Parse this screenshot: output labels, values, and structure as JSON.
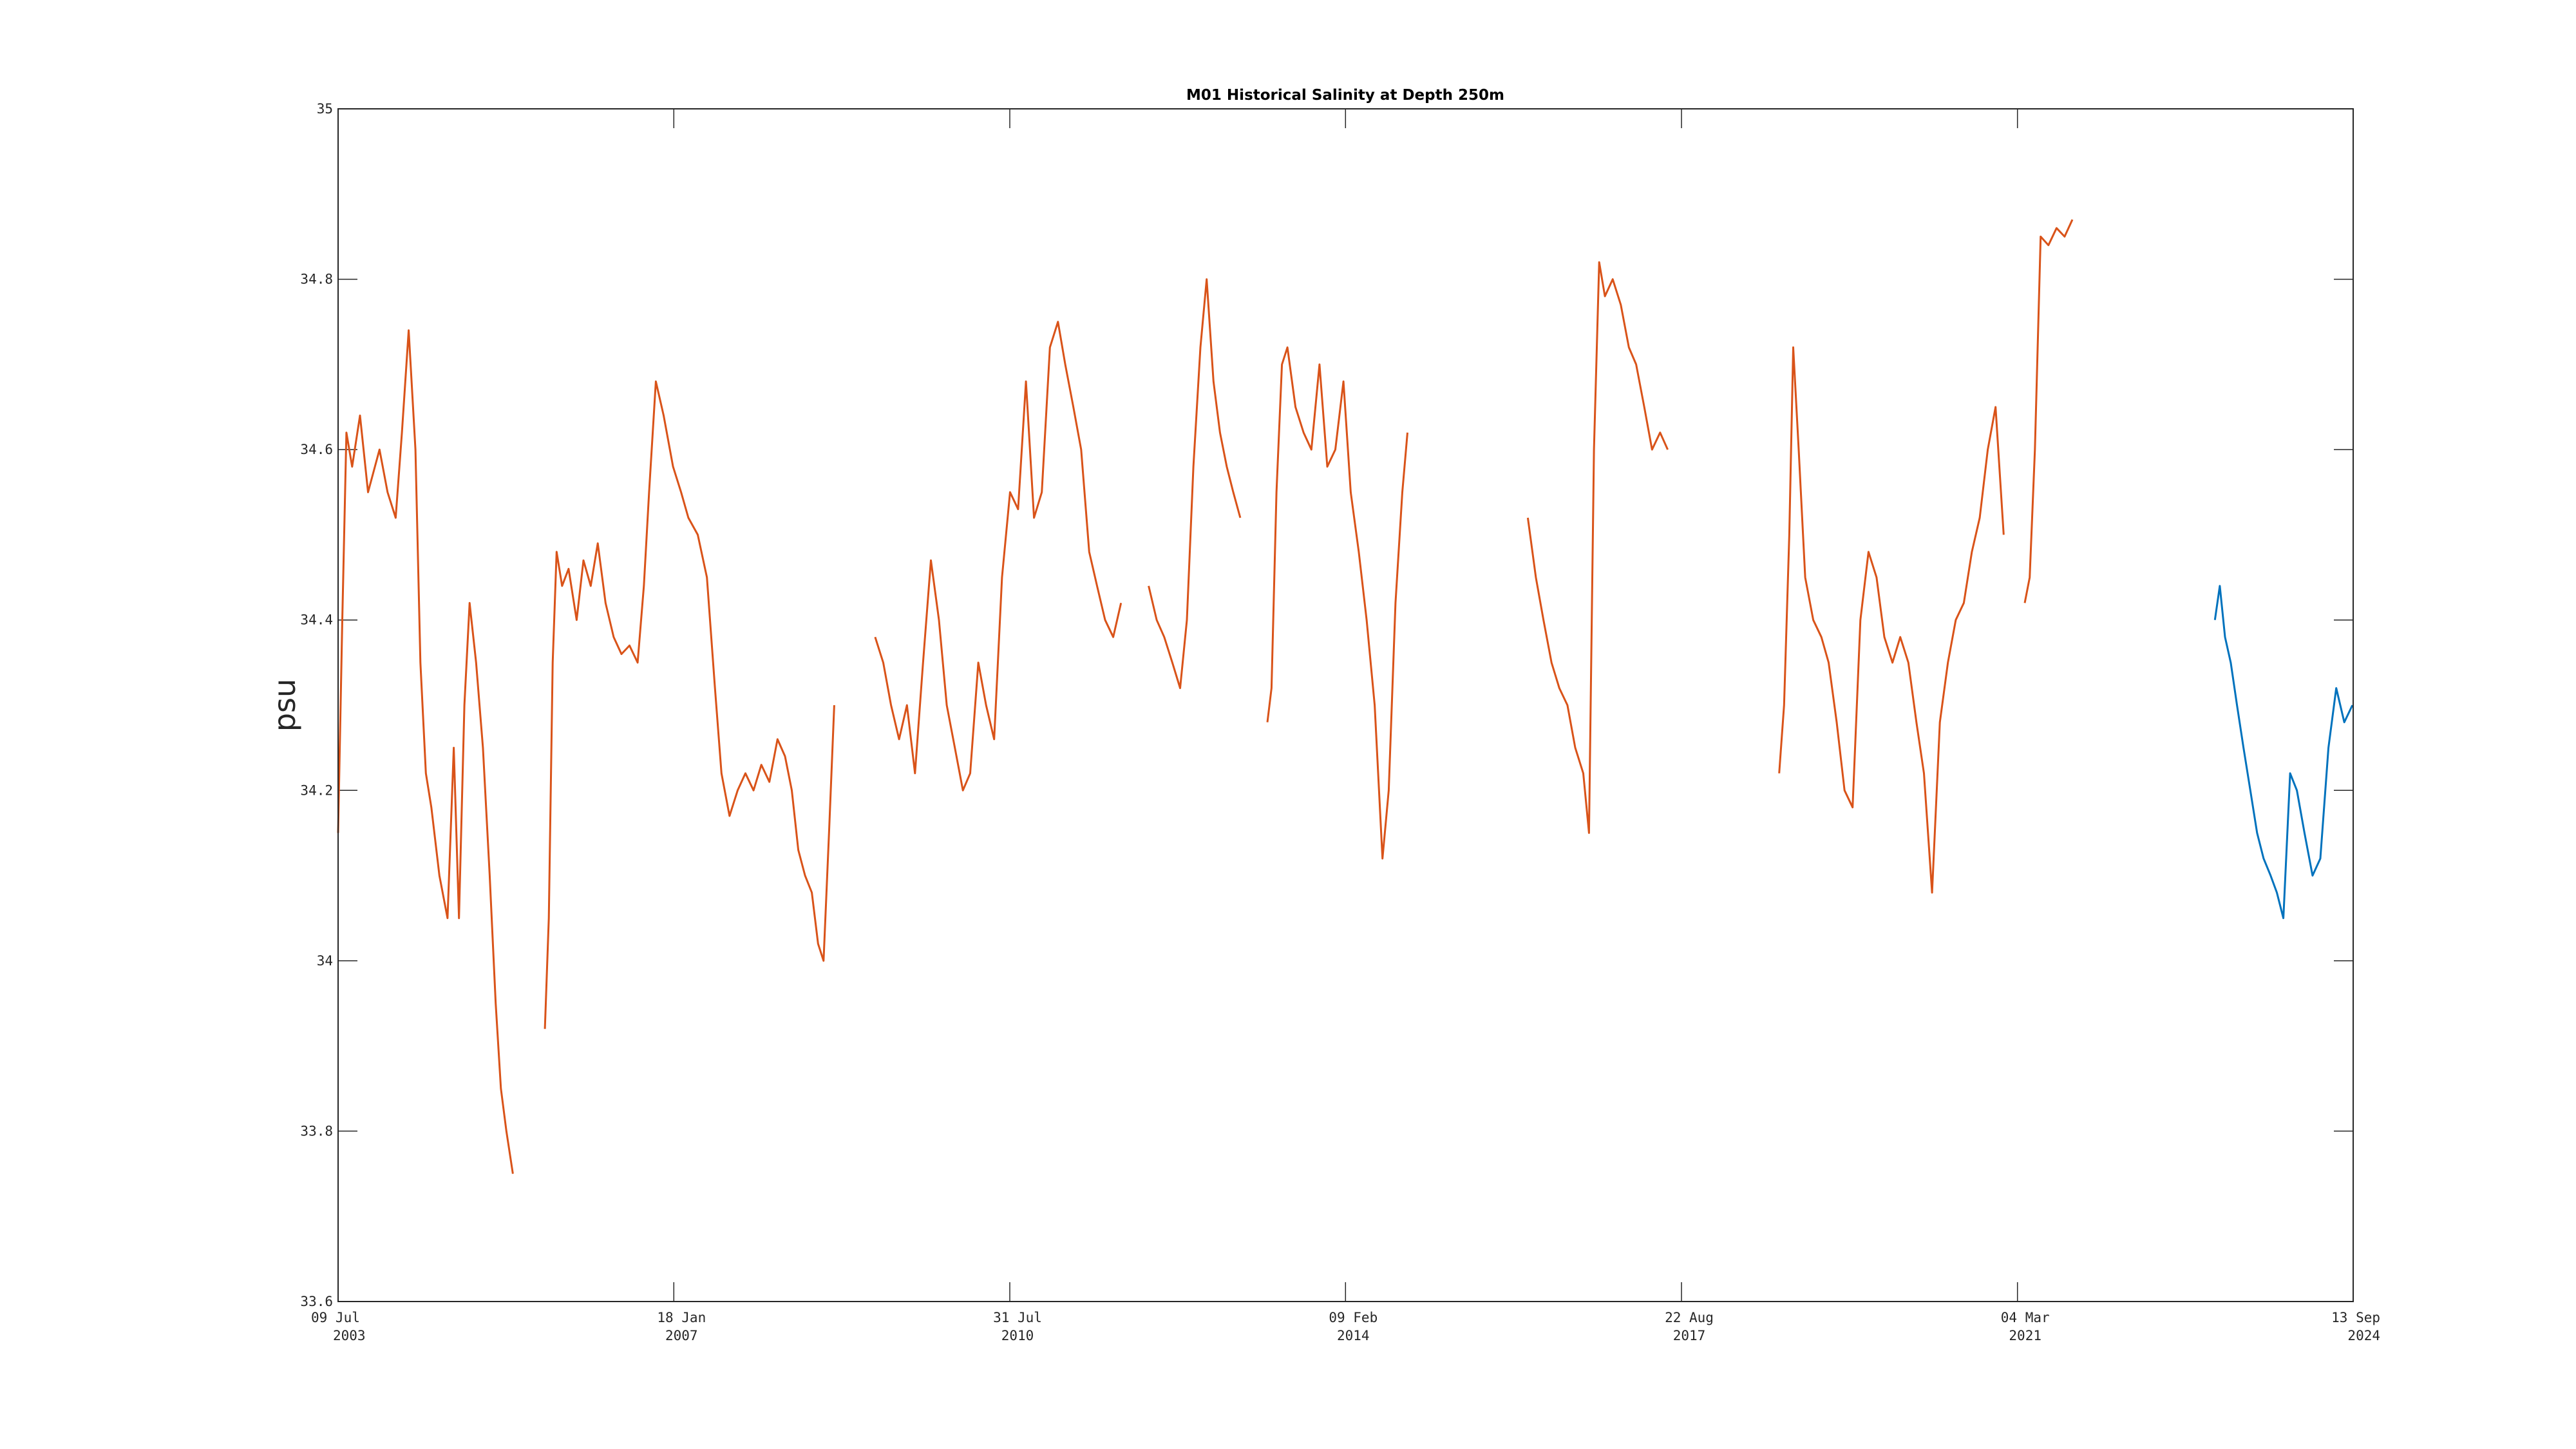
{
  "chart_data": {
    "type": "line",
    "title": "M01 Historical Salinity at Depth 250m",
    "xlabel": "",
    "ylabel": "psu",
    "xlim": [
      "2003-07-09",
      "2024-09-13"
    ],
    "ylim": [
      33.6,
      35.0
    ],
    "yticks": [
      33.6,
      33.8,
      34,
      34.2,
      34.4,
      34.6,
      34.8,
      35
    ],
    "xticks": [
      {
        "date": "2003-07-09",
        "line1": "09 Jul",
        "line2": "2003"
      },
      {
        "date": "2007-01-18",
        "line1": "18 Jan",
        "line2": "2007"
      },
      {
        "date": "2010-07-31",
        "line1": "31 Jul",
        "line2": "2010"
      },
      {
        "date": "2014-02-09",
        "line1": "09 Feb",
        "line2": "2014"
      },
      {
        "date": "2017-08-22",
        "line1": "22 Aug",
        "line2": "2017"
      },
      {
        "date": "2021-03-04",
        "line1": "04 Mar",
        "line2": "2021"
      },
      {
        "date": "2024-09-13",
        "line1": "13 Sep",
        "line2": "2024"
      }
    ],
    "grid": false,
    "series": [
      {
        "color": "#D95319",
        "segments": [
          [
            [
              "2003-07-09",
              34.15
            ],
            [
              "2003-07-25",
              34.4
            ],
            [
              "2003-08-10",
              34.62
            ],
            [
              "2003-09-01",
              34.58
            ],
            [
              "2003-10-01",
              34.64
            ],
            [
              "2003-11-01",
              34.55
            ],
            [
              "2003-12-15",
              34.6
            ],
            [
              "2004-01-15",
              34.55
            ],
            [
              "2004-02-15",
              34.52
            ],
            [
              "2004-03-10",
              34.62
            ],
            [
              "2004-04-05",
              34.74
            ],
            [
              "2004-05-01",
              34.6
            ],
            [
              "2004-05-20",
              34.35
            ],
            [
              "2004-06-10",
              34.22
            ],
            [
              "2004-07-01",
              34.18
            ],
            [
              "2004-08-01",
              34.1
            ],
            [
              "2004-09-01",
              34.05
            ],
            [
              "2004-09-25",
              34.25
            ],
            [
              "2004-10-15",
              34.05
            ],
            [
              "2004-11-05",
              34.3
            ],
            [
              "2004-11-25",
              34.42
            ],
            [
              "2004-12-20",
              34.35
            ],
            [
              "2005-01-15",
              34.25
            ],
            [
              "2005-02-10",
              34.1
            ],
            [
              "2005-03-05",
              33.95
            ],
            [
              "2005-03-25",
              33.85
            ],
            [
              "2005-04-15",
              33.8
            ],
            [
              "2005-05-10",
              33.75
            ]
          ],
          [
            [
              "2005-09-10",
              33.92
            ],
            [
              "2005-09-25",
              34.05
            ],
            [
              "2005-10-10",
              34.35
            ],
            [
              "2005-10-25",
              34.48
            ],
            [
              "2005-11-15",
              34.44
            ],
            [
              "2005-12-10",
              34.46
            ],
            [
              "2006-01-10",
              34.4
            ],
            [
              "2006-02-05",
              34.47
            ],
            [
              "2006-03-05",
              34.44
            ],
            [
              "2006-04-01",
              34.49
            ],
            [
              "2006-05-01",
              34.42
            ],
            [
              "2006-06-01",
              34.38
            ],
            [
              "2006-07-01",
              34.36
            ],
            [
              "2006-08-01",
              34.37
            ],
            [
              "2006-09-01",
              34.35
            ],
            [
              "2006-09-25",
              34.44
            ],
            [
              "2006-10-15",
              34.55
            ],
            [
              "2006-11-10",
              34.68
            ],
            [
              "2006-12-10",
              34.64
            ],
            [
              "2007-01-15",
              34.58
            ],
            [
              "2007-02-15",
              34.55
            ],
            [
              "2007-03-15",
              34.52
            ],
            [
              "2007-04-20",
              34.5
            ],
            [
              "2007-05-25",
              34.45
            ],
            [
              "2007-06-25",
              34.32
            ],
            [
              "2007-07-20",
              34.22
            ],
            [
              "2007-08-20",
              34.17
            ],
            [
              "2007-09-20",
              34.2
            ],
            [
              "2007-10-20",
              34.22
            ],
            [
              "2007-11-20",
              34.2
            ],
            [
              "2007-12-20",
              34.23
            ],
            [
              "2008-01-20",
              34.21
            ],
            [
              "2008-02-20",
              34.26
            ],
            [
              "2008-03-20",
              34.24
            ],
            [
              "2008-04-15",
              34.2
            ],
            [
              "2008-05-10",
              34.13
            ],
            [
              "2008-06-05",
              34.1
            ],
            [
              "2008-07-01",
              34.08
            ],
            [
              "2008-07-25",
              34.02
            ],
            [
              "2008-08-15",
              34.0
            ],
            [
              "2008-09-05",
              34.15
            ],
            [
              "2008-09-25",
              34.3
            ]
          ],
          [
            [
              "2009-03-01",
              34.38
            ],
            [
              "2009-04-01",
              34.35
            ],
            [
              "2009-05-01",
              34.3
            ],
            [
              "2009-06-01",
              34.26
            ],
            [
              "2009-07-01",
              34.3
            ],
            [
              "2009-08-01",
              34.22
            ],
            [
              "2009-09-01",
              34.35
            ],
            [
              "2009-10-01",
              34.47
            ],
            [
              "2009-11-01",
              34.4
            ],
            [
              "2009-12-01",
              34.3
            ],
            [
              "2010-01-01",
              34.25
            ],
            [
              "2010-02-01",
              34.2
            ],
            [
              "2010-03-01",
              34.22
            ],
            [
              "2010-04-01",
              34.35
            ],
            [
              "2010-05-01",
              34.3
            ],
            [
              "2010-06-01",
              34.26
            ],
            [
              "2010-07-01",
              34.45
            ],
            [
              "2010-08-01",
              34.55
            ],
            [
              "2010-09-01",
              34.53
            ],
            [
              "2010-10-01",
              34.68
            ],
            [
              "2010-11-01",
              34.52
            ],
            [
              "2010-12-01",
              34.55
            ],
            [
              "2011-01-01",
              34.72
            ],
            [
              "2011-02-01",
              34.75
            ],
            [
              "2011-03-01",
              34.7
            ],
            [
              "2011-04-01",
              34.65
            ],
            [
              "2011-05-01",
              34.6
            ],
            [
              "2011-06-01",
              34.48
            ],
            [
              "2011-07-01",
              34.44
            ],
            [
              "2011-08-01",
              34.4
            ],
            [
              "2011-09-01",
              34.38
            ],
            [
              "2011-10-01",
              34.42
            ]
          ],
          [
            [
              "2012-01-15",
              34.44
            ],
            [
              "2012-02-15",
              34.4
            ],
            [
              "2012-03-15",
              34.38
            ],
            [
              "2012-04-15",
              34.35
            ],
            [
              "2012-05-15",
              34.32
            ],
            [
              "2012-06-10",
              34.4
            ],
            [
              "2012-07-05",
              34.58
            ],
            [
              "2012-08-01",
              34.72
            ],
            [
              "2012-08-25",
              34.8
            ],
            [
              "2012-09-20",
              34.68
            ],
            [
              "2012-10-15",
              34.62
            ],
            [
              "2012-11-10",
              34.58
            ],
            [
              "2012-12-05",
              34.55
            ],
            [
              "2013-01-01",
              34.52
            ]
          ],
          [
            [
              "2013-04-15",
              34.28
            ],
            [
              "2013-05-01",
              34.32
            ],
            [
              "2013-05-20",
              34.55
            ],
            [
              "2013-06-10",
              34.7
            ],
            [
              "2013-07-01",
              34.72
            ],
            [
              "2013-08-01",
              34.65
            ],
            [
              "2013-09-01",
              34.62
            ],
            [
              "2013-10-01",
              34.6
            ],
            [
              "2013-11-01",
              34.7
            ],
            [
              "2013-12-01",
              34.58
            ],
            [
              "2014-01-01",
              34.6
            ],
            [
              "2014-02-01",
              34.68
            ],
            [
              "2014-03-01",
              34.55
            ],
            [
              "2014-04-01",
              34.48
            ],
            [
              "2014-05-01",
              34.4
            ],
            [
              "2014-06-01",
              34.3
            ],
            [
              "2014-07-01",
              34.12
            ],
            [
              "2014-07-25",
              34.2
            ],
            [
              "2014-08-20",
              34.42
            ],
            [
              "2014-09-15",
              34.55
            ],
            [
              "2014-10-05",
              34.62
            ]
          ],
          [
            [
              "2016-01-10",
              34.52
            ],
            [
              "2016-02-10",
              34.45
            ],
            [
              "2016-03-10",
              34.4
            ],
            [
              "2016-04-10",
              34.35
            ],
            [
              "2016-05-10",
              34.32
            ],
            [
              "2016-06-10",
              34.3
            ],
            [
              "2016-07-10",
              34.25
            ],
            [
              "2016-08-10",
              34.22
            ],
            [
              "2016-09-01",
              34.15
            ],
            [
              "2016-09-20",
              34.6
            ],
            [
              "2016-10-10",
              34.82
            ],
            [
              "2016-11-01",
              34.78
            ],
            [
              "2016-12-01",
              34.8
            ],
            [
              "2017-01-01",
              34.77
            ],
            [
              "2017-02-01",
              34.72
            ],
            [
              "2017-03-01",
              34.7
            ],
            [
              "2017-04-01",
              34.65
            ],
            [
              "2017-05-01",
              34.6
            ],
            [
              "2017-06-01",
              34.62
            ],
            [
              "2017-06-30",
              34.6
            ]
          ],
          [
            [
              "2018-09-01",
              34.22
            ],
            [
              "2018-09-20",
              34.3
            ],
            [
              "2018-10-10",
              34.5
            ],
            [
              "2018-10-25",
              34.72
            ],
            [
              "2018-11-15",
              34.6
            ],
            [
              "2018-12-10",
              34.45
            ],
            [
              "2019-01-10",
              34.4
            ],
            [
              "2019-02-10",
              34.38
            ],
            [
              "2019-03-10",
              34.35
            ],
            [
              "2019-04-10",
              34.28
            ],
            [
              "2019-05-10",
              34.2
            ],
            [
              "2019-06-10",
              34.18
            ],
            [
              "2019-07-10",
              34.4
            ],
            [
              "2019-08-10",
              34.48
            ],
            [
              "2019-09-10",
              34.45
            ],
            [
              "2019-10-10",
              34.38
            ],
            [
              "2019-11-10",
              34.35
            ],
            [
              "2019-12-10",
              34.38
            ],
            [
              "2020-01-10",
              34.35
            ],
            [
              "2020-02-10",
              34.28
            ],
            [
              "2020-03-10",
              34.22
            ],
            [
              "2020-04-10",
              34.08
            ],
            [
              "2020-05-10",
              34.28
            ],
            [
              "2020-06-10",
              34.35
            ],
            [
              "2020-07-10",
              34.4
            ],
            [
              "2020-08-10",
              34.42
            ],
            [
              "2020-09-10",
              34.48
            ],
            [
              "2020-10-10",
              34.52
            ],
            [
              "2020-11-10",
              34.6
            ],
            [
              "2020-12-10",
              34.65
            ],
            [
              "2021-01-10",
              34.5
            ]
          ],
          [
            [
              "2021-04-01",
              34.42
            ],
            [
              "2021-04-20",
              34.45
            ],
            [
              "2021-05-10",
              34.6
            ],
            [
              "2021-06-01",
              34.85
            ],
            [
              "2021-07-01",
              34.84
            ],
            [
              "2021-08-01",
              34.86
            ],
            [
              "2021-09-01",
              34.85
            ],
            [
              "2021-10-01",
              34.87
            ]
          ]
        ]
      },
      {
        "color": "#0072BD",
        "segments": [
          [
            [
              "2023-04-01",
              34.4
            ],
            [
              "2023-04-20",
              34.44
            ],
            [
              "2023-05-10",
              34.38
            ],
            [
              "2023-06-01",
              34.35
            ],
            [
              "2023-06-25",
              34.3
            ],
            [
              "2023-07-20",
              34.25
            ],
            [
              "2023-08-15",
              34.2
            ],
            [
              "2023-09-10",
              34.15
            ],
            [
              "2023-10-05",
              34.12
            ],
            [
              "2023-11-01",
              34.1
            ],
            [
              "2023-11-25",
              34.08
            ],
            [
              "2023-12-20",
              34.05
            ],
            [
              "2024-01-15",
              34.22
            ],
            [
              "2024-02-10",
              34.2
            ],
            [
              "2024-03-10",
              34.15
            ],
            [
              "2024-04-10",
              34.1
            ],
            [
              "2024-05-10",
              34.12
            ],
            [
              "2024-06-10",
              34.25
            ],
            [
              "2024-07-10",
              34.32
            ],
            [
              "2024-08-10",
              34.28
            ],
            [
              "2024-09-10",
              34.3
            ]
          ]
        ]
      }
    ]
  }
}
